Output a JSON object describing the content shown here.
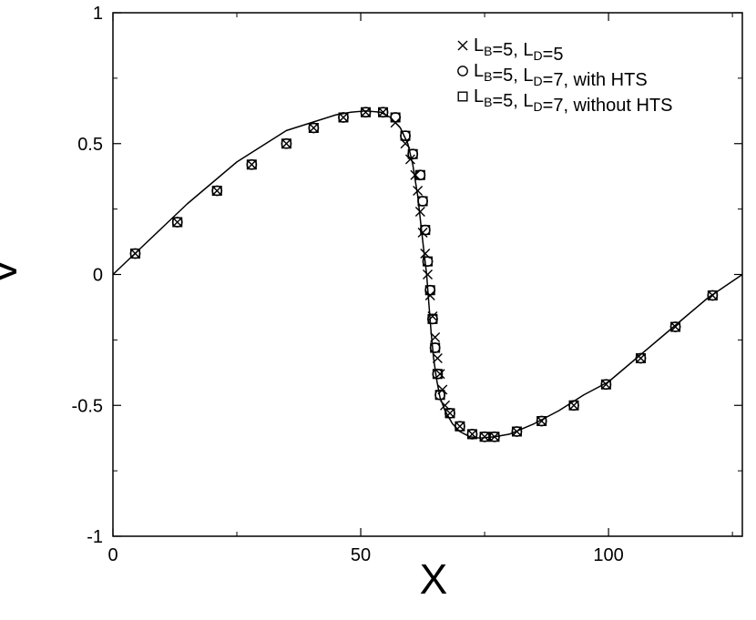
{
  "chart_data": {
    "type": "scatter",
    "xlabel": "X",
    "ylabel": "V",
    "xlim": [
      0,
      127
    ],
    "ylim": [
      -1,
      1
    ],
    "x_ticks": [
      "0",
      "50",
      "100"
    ],
    "x_tick_values": [
      0,
      50,
      100
    ],
    "y_ticks": [
      "-1",
      "-0.5",
      "0",
      "0.5",
      "1"
    ],
    "y_tick_values": [
      -1,
      -0.5,
      0,
      0.5,
      1
    ],
    "grid": false,
    "legend_position": "top-right",
    "curve": {
      "style": "solid-line",
      "x": [
        0,
        5,
        10,
        15,
        20,
        25,
        30,
        35,
        40,
        45,
        48,
        51,
        54,
        56,
        58,
        59.5,
        60.5,
        61.5,
        62.2,
        62.8,
        63.3,
        63.7,
        64.2,
        64.7,
        65.3,
        66,
        67,
        68.5,
        70,
        72,
        74,
        77,
        80,
        85,
        90,
        95,
        100,
        105,
        110,
        115,
        120,
        127
      ],
      "y": [
        0,
        0.09,
        0.18,
        0.27,
        0.35,
        0.43,
        0.49,
        0.55,
        0.58,
        0.61,
        0.62,
        0.625,
        0.62,
        0.6,
        0.56,
        0.5,
        0.42,
        0.3,
        0.18,
        0.08,
        0,
        -0.1,
        -0.22,
        -0.32,
        -0.4,
        -0.47,
        -0.52,
        -0.57,
        -0.6,
        -0.62,
        -0.625,
        -0.62,
        -0.61,
        -0.57,
        -0.52,
        -0.46,
        -0.41,
        -0.33,
        -0.25,
        -0.17,
        -0.09,
        0
      ]
    },
    "series": [
      {
        "name": "L_B=5, L_D=5",
        "label_main_1": "L",
        "label_sub_1": "B",
        "label_mid": "=5, L",
        "label_sub_2": "D",
        "label_tail": "=5",
        "marker": "x",
        "x": [
          4.5,
          13,
          21,
          28,
          35,
          40.5,
          46.5,
          51,
          54.5,
          57,
          59,
          60,
          61,
          61.5,
          62,
          62.5,
          63,
          63.5,
          64,
          64.5,
          65,
          65.5,
          66,
          66.5,
          67,
          68,
          70,
          72.5,
          75,
          77,
          81.5,
          86.5,
          93,
          99.5,
          106.5,
          113.5,
          121
        ],
        "y": [
          0.08,
          0.2,
          0.32,
          0.42,
          0.5,
          0.56,
          0.6,
          0.62,
          0.62,
          0.58,
          0.5,
          0.44,
          0.38,
          0.32,
          0.24,
          0.16,
          0.08,
          0,
          -0.08,
          -0.16,
          -0.24,
          -0.32,
          -0.38,
          -0.44,
          -0.5,
          -0.53,
          -0.58,
          -0.61,
          -0.62,
          -0.62,
          -0.6,
          -0.56,
          -0.5,
          -0.42,
          -0.32,
          -0.2,
          -0.08
        ]
      },
      {
        "name": "L_B=5, L_D=7, with HTS",
        "label_main_1": "L",
        "label_sub_1": "B",
        "label_mid": "=5, L",
        "label_sub_2": "D",
        "label_tail": "=7, with HTS",
        "marker": "circle",
        "x": [
          4.5,
          13,
          21,
          28,
          35,
          40.5,
          46.5,
          51,
          54.5,
          57,
          59,
          60.5,
          62,
          62.5,
          63,
          63.5,
          64,
          64.5,
          65,
          65.5,
          66,
          68,
          70,
          72.5,
          75,
          77,
          81.5,
          86.5,
          93,
          99.5,
          106.5,
          113.5,
          121
        ],
        "y": [
          0.08,
          0.2,
          0.32,
          0.42,
          0.5,
          0.56,
          0.6,
          0.62,
          0.62,
          0.6,
          0.53,
          0.46,
          0.38,
          0.28,
          0.17,
          0.05,
          -0.06,
          -0.17,
          -0.28,
          -0.38,
          -0.46,
          -0.53,
          -0.58,
          -0.61,
          -0.62,
          -0.62,
          -0.6,
          -0.56,
          -0.5,
          -0.42,
          -0.32,
          -0.2,
          -0.08
        ]
      },
      {
        "name": "L_B=5, L_D=7, without HTS",
        "label_main_1": "L",
        "label_sub_1": "B",
        "label_mid": "=5, L",
        "label_sub_2": "D",
        "label_tail": "=7, without HTS",
        "marker": "square",
        "x": [
          4.5,
          13,
          21,
          28,
          35,
          40.5,
          46.5,
          51,
          54.5,
          57,
          59,
          60.5,
          62,
          62.5,
          63,
          63.5,
          64,
          64.5,
          65,
          65.5,
          66,
          68,
          70,
          72.5,
          75,
          77,
          81.5,
          86.5,
          93,
          99.5,
          106.5,
          113.5,
          121
        ],
        "y": [
          0.08,
          0.2,
          0.32,
          0.42,
          0.5,
          0.56,
          0.6,
          0.62,
          0.62,
          0.6,
          0.53,
          0.46,
          0.38,
          0.28,
          0.17,
          0.05,
          -0.06,
          -0.17,
          -0.28,
          -0.38,
          -0.46,
          -0.53,
          -0.58,
          -0.61,
          -0.62,
          -0.62,
          -0.6,
          -0.56,
          -0.5,
          -0.42,
          -0.32,
          -0.2,
          -0.08
        ]
      }
    ]
  }
}
